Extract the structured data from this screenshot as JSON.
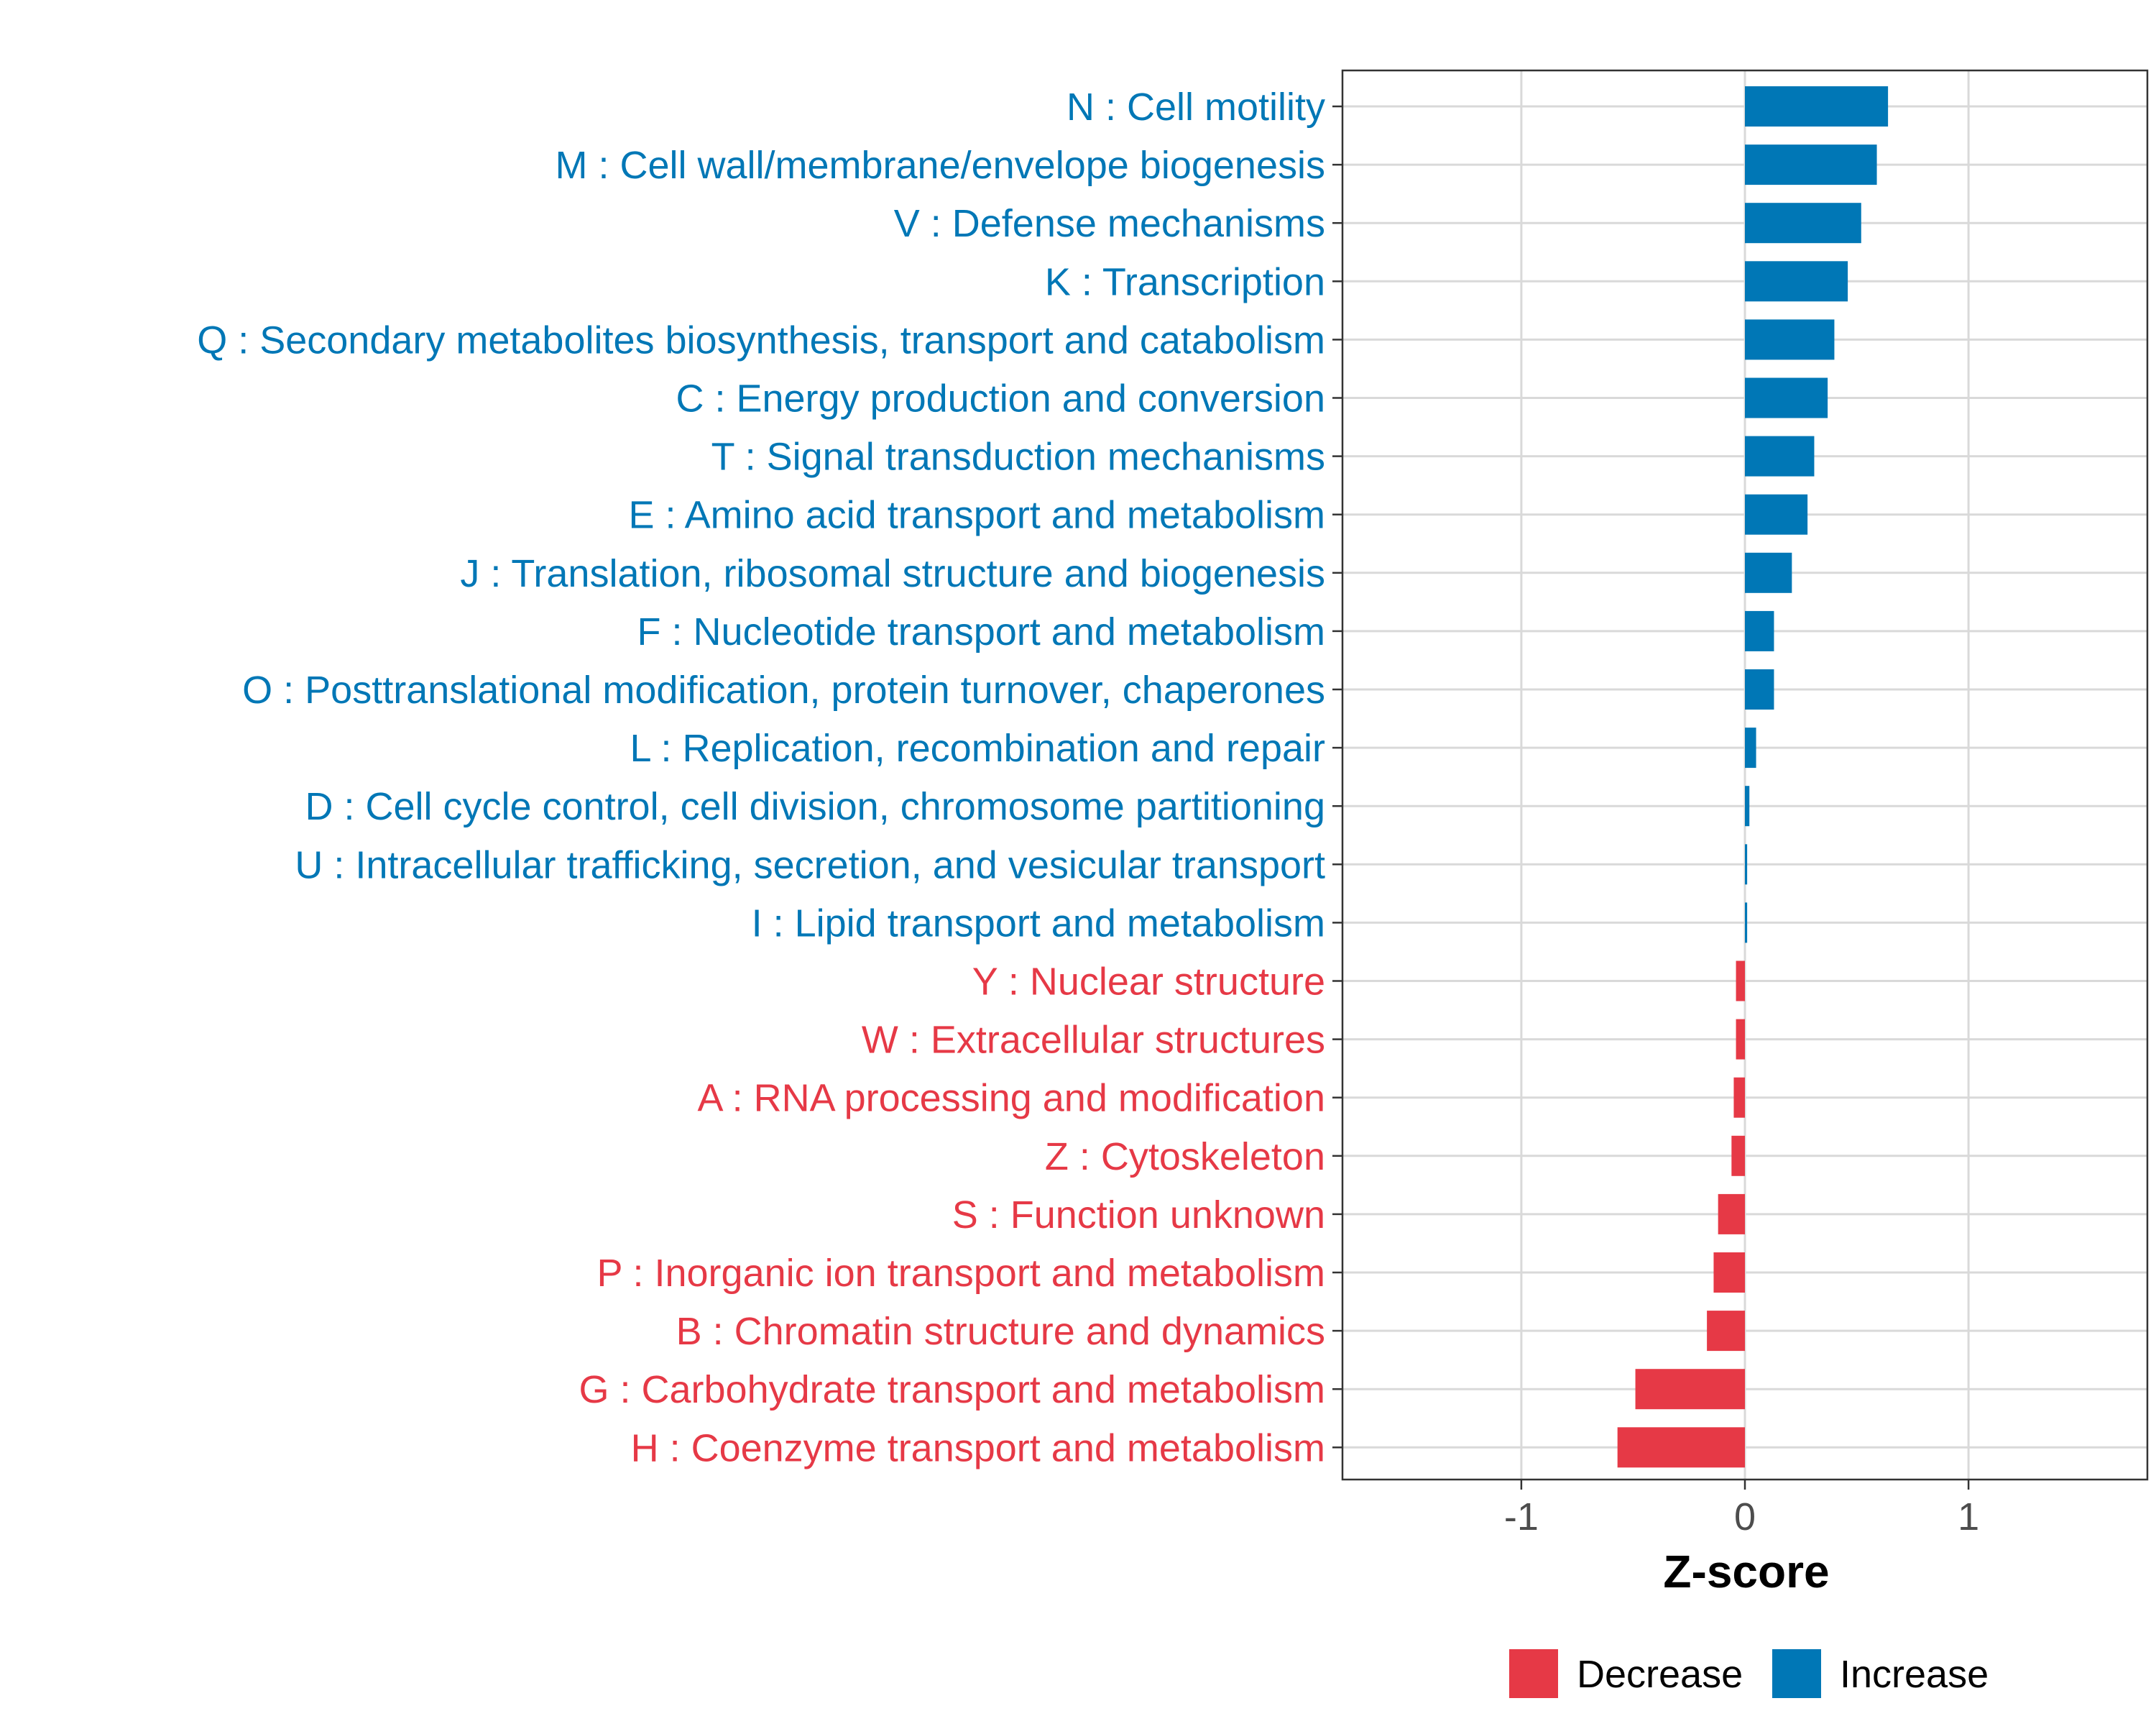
{
  "chart_data": {
    "type": "bar",
    "orientation": "horizontal",
    "xlabel": "Z-score",
    "ylabel": "",
    "xlim": [
      -1.8,
      1.8
    ],
    "x_ticks": [
      -1,
      0,
      1
    ],
    "x_tick_labels": [
      "-1",
      "0",
      "1"
    ],
    "grid": true,
    "legend_position": "bottom",
    "colors": {
      "Increase": "#0077b6",
      "Decrease": "#e63946"
    },
    "legend": [
      {
        "label": "Decrease",
        "color": "#e63946"
      },
      {
        "label": "Increase",
        "color": "#0077b6"
      }
    ],
    "categories": [
      "N : Cell motility",
      "M : Cell wall/membrane/envelope biogenesis",
      "V : Defense mechanisms",
      "K : Transcription",
      "Q : Secondary metabolites biosynthesis, transport and catabolism",
      "C : Energy production and conversion",
      "T : Signal transduction mechanisms",
      "E : Amino acid transport and metabolism",
      "J : Translation, ribosomal structure and biogenesis",
      "F : Nucleotide transport and metabolism",
      "O : Posttranslational modification, protein turnover, chaperones",
      "L : Replication, recombination and repair",
      "D : Cell cycle control, cell division, chromosome partitioning",
      "U : Intracellular trafficking, secretion, and vesicular transport",
      "I : Lipid transport and metabolism",
      "Y : Nuclear structure",
      "W : Extracellular structures",
      "A : RNA processing and modification",
      "Z : Cytoskeleton",
      "S : Function unknown",
      "P : Inorganic ion transport and metabolism",
      "B : Chromatin structure and dynamics",
      "G : Carbohydrate transport and metabolism",
      "H : Coenzyme transport and metabolism"
    ],
    "values": [
      0.64,
      0.59,
      0.52,
      0.46,
      0.4,
      0.37,
      0.31,
      0.28,
      0.21,
      0.13,
      0.13,
      0.05,
      0.02,
      0.01,
      0.01,
      -0.04,
      -0.04,
      -0.05,
      -0.06,
      -0.12,
      -0.14,
      -0.17,
      -0.49,
      -0.57
    ],
    "groups": [
      "Increase",
      "Increase",
      "Increase",
      "Increase",
      "Increase",
      "Increase",
      "Increase",
      "Increase",
      "Increase",
      "Increase",
      "Increase",
      "Increase",
      "Increase",
      "Increase",
      "Increase",
      "Decrease",
      "Decrease",
      "Decrease",
      "Decrease",
      "Decrease",
      "Decrease",
      "Decrease",
      "Decrease",
      "Decrease"
    ]
  }
}
